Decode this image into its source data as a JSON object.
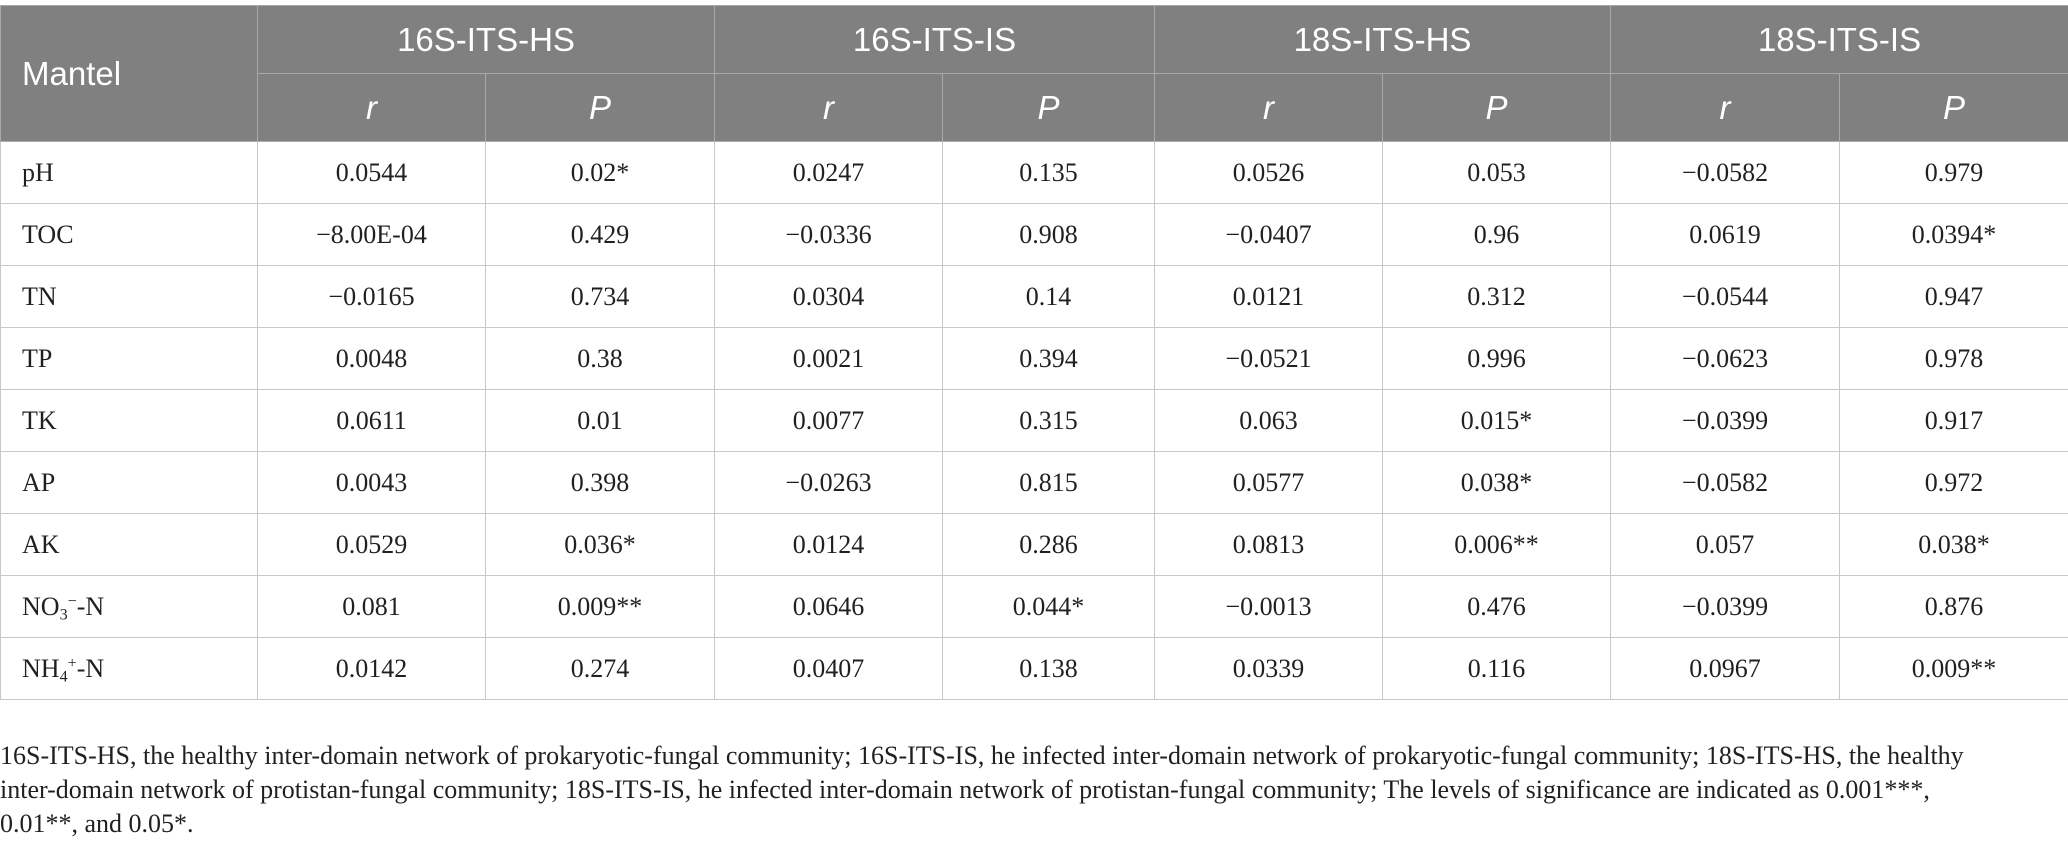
{
  "colors": {
    "header_bg": "#808080",
    "header_text": "#ffffff",
    "body_text": "#231f20",
    "grid": "#c8c8c8"
  },
  "table": {
    "corner_label": "Mantel",
    "groups": [
      "16S-ITS-HS",
      "16S-ITS-IS",
      "18S-ITS-HS",
      "18S-ITS-IS"
    ],
    "stat_labels": {
      "r": "r",
      "p": "P"
    },
    "rows": [
      {
        "label": {
          "text": "pH"
        },
        "values": [
          "0.0544",
          "0.02*",
          "0.0247",
          "0.135",
          "0.0526",
          "0.053",
          "−0.0582",
          "0.979"
        ]
      },
      {
        "label": {
          "text": "TOC"
        },
        "values": [
          "−8.00E-04",
          "0.429",
          "−0.0336",
          "0.908",
          "−0.0407",
          "0.96",
          "0.0619",
          "0.0394*"
        ]
      },
      {
        "label": {
          "text": "TN"
        },
        "values": [
          "−0.0165",
          "0.734",
          "0.0304",
          "0.14",
          "0.0121",
          "0.312",
          "−0.0544",
          "0.947"
        ]
      },
      {
        "label": {
          "text": "TP"
        },
        "values": [
          "0.0048",
          "0.38",
          "0.0021",
          "0.394",
          "−0.0521",
          "0.996",
          "−0.0623",
          "0.978"
        ]
      },
      {
        "label": {
          "text": "TK"
        },
        "values": [
          "0.0611",
          "0.01",
          "0.0077",
          "0.315",
          "0.063",
          "0.015*",
          "−0.0399",
          "0.917"
        ]
      },
      {
        "label": {
          "text": "AP"
        },
        "values": [
          "0.0043",
          "0.398",
          "−0.0263",
          "0.815",
          "0.0577",
          "0.038*",
          "−0.0582",
          "0.972"
        ]
      },
      {
        "label": {
          "text": "AK"
        },
        "values": [
          "0.0529",
          "0.036*",
          "0.0124",
          "0.286",
          "0.0813",
          "0.006**",
          "0.057",
          "0.038*"
        ]
      },
      {
        "label": {
          "text": "NO",
          "sub": "3",
          "sup": "−",
          "suffix": "-N"
        },
        "values": [
          "0.081",
          "0.009**",
          "0.0646",
          "0.044*",
          "−0.0013",
          "0.476",
          "−0.0399",
          "0.876"
        ]
      },
      {
        "label": {
          "text": "NH",
          "sub": "4",
          "sup": "+",
          "suffix": "-N"
        },
        "values": [
          "0.0142",
          "0.274",
          "0.0407",
          "0.138",
          "0.0339",
          "0.116",
          "0.0967",
          "0.009**"
        ]
      }
    ]
  },
  "footnote": "16S-ITS-HS, the healthy inter-domain network of prokaryotic-fungal community; 16S-ITS-IS, he infected inter-domain network of prokaryotic-fungal community; 18S-ITS-HS, the healthy inter-domain network of protistan-fungal community; 18S-ITS-IS, he infected inter-domain network of protistan-fungal community; The levels of significance are indicated as 0.001***, 0.01**, and 0.05*."
}
